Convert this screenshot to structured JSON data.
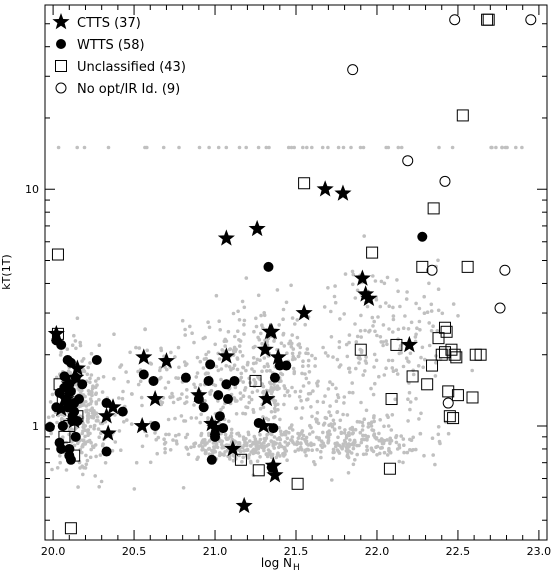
{
  "chart_data": {
    "type": "scatter",
    "title": "",
    "xlabel": "log N",
    "xlabel_sub": "H",
    "ylabel": "kT(1T)",
    "xlim": [
      19.95,
      23.05
    ],
    "ylim": [
      0.33,
      60
    ],
    "y_scale": "log",
    "grid": false,
    "legend_position": "top-left",
    "x_ticks": [
      20.0,
      20.5,
      21.0,
      21.5,
      22.0,
      22.5,
      23.0
    ],
    "x_tick_labels": [
      "20.0",
      "20.5",
      "21.0",
      "21.5",
      "22.0",
      "22.5",
      "23.0"
    ],
    "y_ticks": [
      1,
      10
    ],
    "y_tick_labels": [
      "1",
      "10"
    ],
    "colors": {
      "foreground": "#000000",
      "background_cloud": "#c0c0c0"
    },
    "legend": [
      {
        "marker": "star",
        "label": "CTTS (37)"
      },
      {
        "marker": "filled-circle",
        "label": "WTTS (58)"
      },
      {
        "marker": "open-square",
        "label": "Unclassified (43)"
      },
      {
        "marker": "open-circle",
        "label": "No opt/IR Id. (9)"
      }
    ],
    "series": [
      {
        "name": "CTTS (37)",
        "marker": "star",
        "x": [
          20.02,
          20.08,
          20.1,
          20.14,
          20.15,
          20.33,
          20.34,
          20.56,
          20.55,
          20.63,
          20.7,
          21.07,
          21.07,
          21.11,
          21.18,
          21.26,
          21.3,
          21.31,
          21.32,
          21.34,
          21.35,
          21.37,
          21.36,
          21.39,
          21.55,
          21.68,
          21.79,
          21.91,
          21.93,
          21.95,
          22.2,
          20.9,
          20.98,
          20.37,
          21.0,
          20.13,
          20.05
        ],
        "y": [
          2.45,
          1.3,
          1.5,
          1.6,
          1.75,
          1.1,
          0.93,
          1.95,
          1.0,
          1.3,
          1.88,
          1.97,
          6.2,
          0.8,
          0.46,
          6.8,
          1.0,
          2.1,
          1.3,
          2.5,
          2.5,
          0.62,
          0.68,
          1.95,
          3.0,
          10.0,
          9.6,
          4.2,
          3.6,
          3.45,
          2.2,
          1.35,
          1.02,
          1.2,
          0.98,
          1.05,
          1.18
        ]
      },
      {
        "name": "WTTS (58)",
        "marker": "filled-circle",
        "x": [
          19.98,
          20.02,
          20.04,
          20.05,
          20.06,
          20.08,
          20.1,
          20.11,
          20.12,
          20.13,
          20.15,
          20.04,
          20.07,
          20.09,
          20.11,
          20.13,
          20.14,
          20.07,
          20.09,
          20.12,
          20.05,
          20.08,
          20.1,
          20.14,
          20.06,
          20.16,
          20.18,
          20.27,
          20.33,
          20.33,
          20.43,
          20.56,
          20.62,
          20.63,
          20.82,
          20.9,
          20.93,
          20.96,
          20.97,
          20.98,
          21.0,
          21.02,
          21.03,
          21.05,
          21.07,
          21.08,
          21.12,
          21.27,
          21.33,
          21.35,
          21.36,
          21.4,
          21.44,
          21.37,
          22.28,
          20.02,
          20.1,
          20.11
        ],
        "y": [
          0.99,
          1.2,
          0.85,
          0.8,
          1.0,
          1.3,
          1.5,
          1.85,
          1.1,
          1.25,
          1.05,
          1.38,
          1.62,
          1.9,
          1.4,
          1.15,
          0.9,
          1.45,
          1.2,
          1.05,
          2.2,
          1.28,
          0.8,
          1.6,
          1.0,
          1.3,
          1.5,
          1.9,
          1.25,
          0.78,
          1.15,
          1.65,
          1.55,
          1.0,
          1.6,
          1.3,
          1.2,
          1.55,
          1.82,
          0.72,
          0.9,
          1.35,
          1.1,
          0.98,
          1.5,
          1.3,
          1.55,
          1.03,
          4.7,
          0.67,
          0.98,
          1.8,
          1.8,
          1.6,
          6.3,
          2.3,
          0.75,
          0.72
        ]
      },
      {
        "name": "Unclassified (43)",
        "marker": "open-square",
        "x": [
          20.03,
          20.04,
          20.06,
          20.07,
          20.1,
          20.11,
          20.13,
          20.15,
          20.03,
          21.16,
          21.25,
          21.27,
          21.51,
          21.55,
          21.9,
          21.97,
          22.08,
          22.09,
          22.12,
          22.22,
          22.28,
          22.31,
          22.34,
          22.35,
          22.38,
          22.4,
          22.42,
          22.43,
          22.45,
          22.46,
          22.47,
          22.48,
          22.49,
          22.5,
          22.53,
          22.56,
          22.59,
          22.61,
          22.64,
          22.68,
          22.69,
          22.42,
          22.44
        ],
        "y": [
          5.3,
          1.5,
          1.3,
          0.9,
          1.0,
          0.37,
          0.75,
          1.1,
          2.45,
          0.72,
          1.55,
          0.65,
          0.57,
          10.6,
          2.1,
          5.4,
          0.66,
          1.3,
          2.2,
          1.62,
          4.7,
          1.5,
          1.8,
          8.3,
          2.35,
          2.0,
          2.05,
          2.5,
          1.1,
          2.1,
          1.08,
          2.0,
          1.95,
          1.35,
          20.5,
          4.7,
          1.32,
          2.0,
          2.0,
          52.0,
          52.0,
          2.6,
          1.4
        ]
      },
      {
        "name": "No opt/IR Id. (9)",
        "marker": "open-circle",
        "x": [
          21.85,
          22.19,
          22.34,
          22.42,
          22.44,
          22.48,
          22.76,
          22.79,
          22.95
        ],
        "y": [
          32.0,
          13.2,
          4.55,
          10.8,
          1.25,
          52.0,
          3.15,
          4.55,
          52.0
        ]
      }
    ]
  }
}
